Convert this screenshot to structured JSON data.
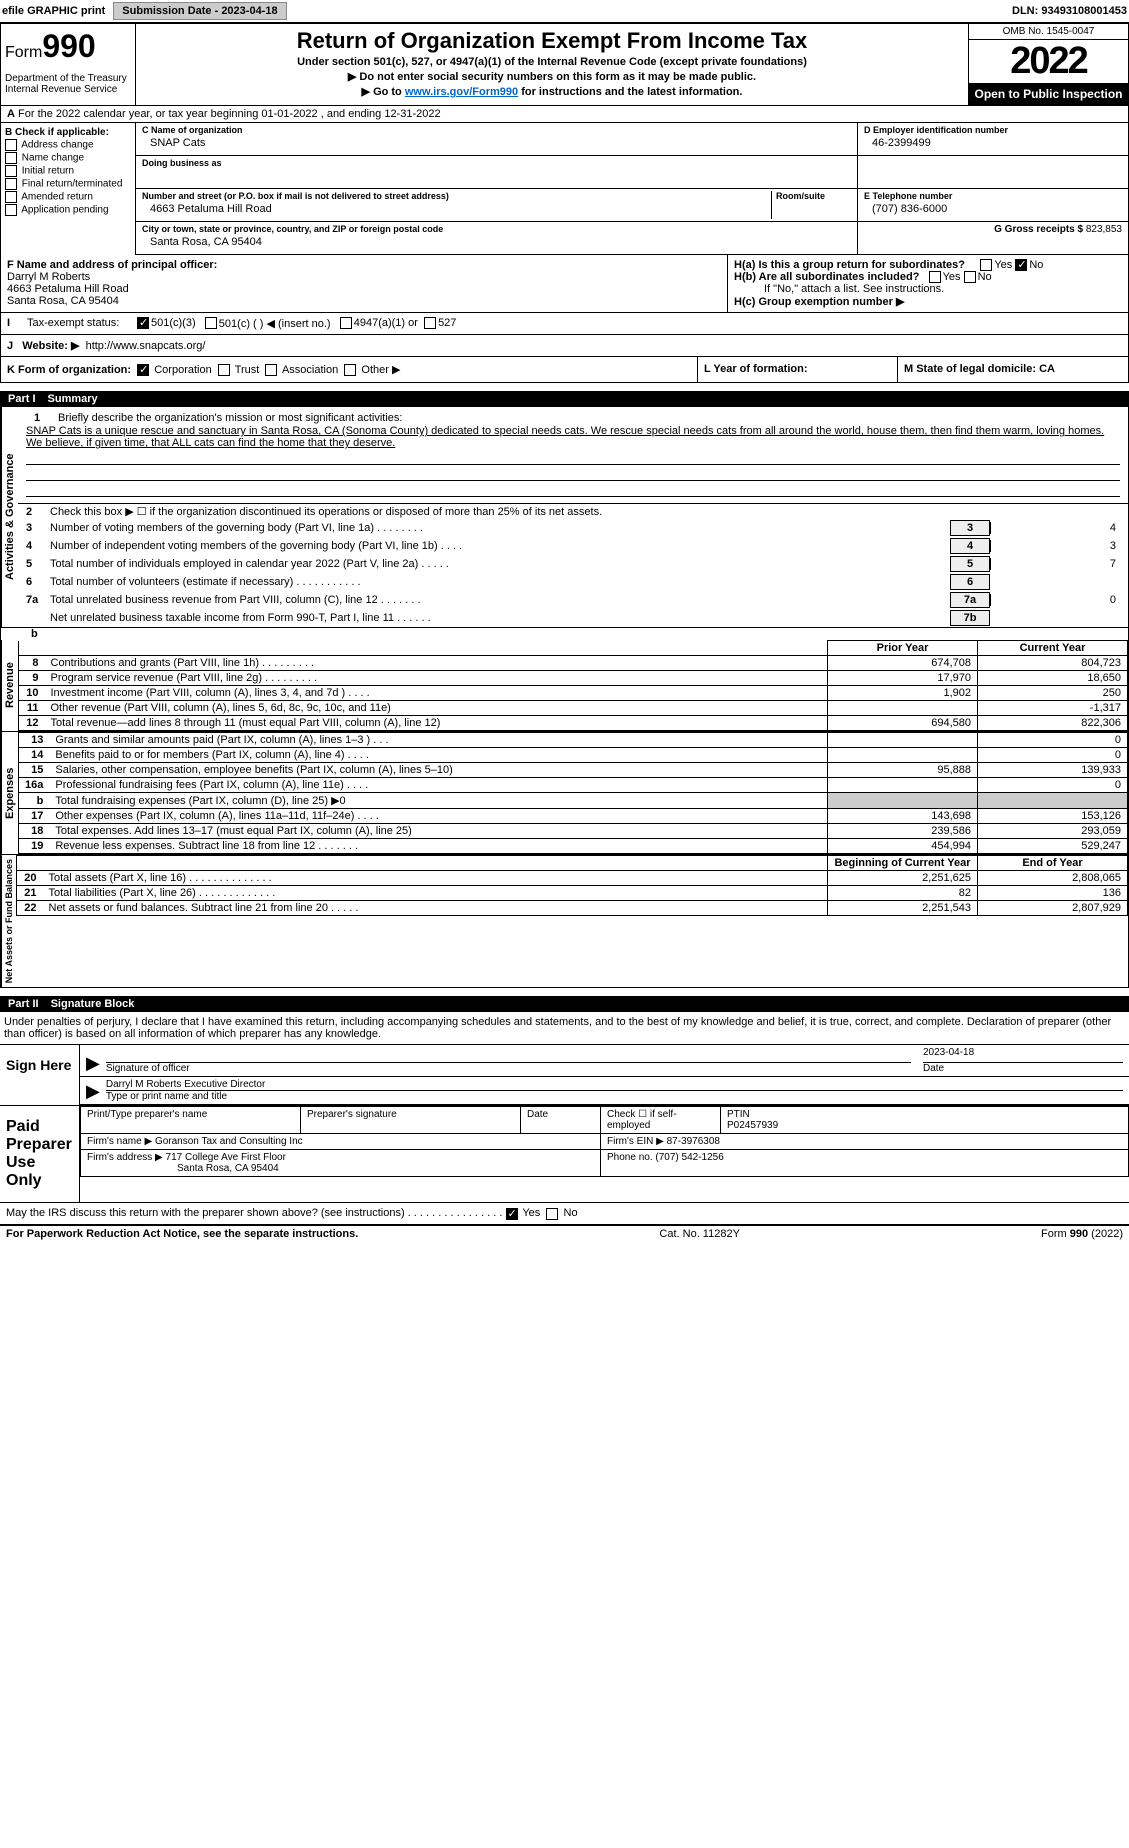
{
  "topbar": {
    "efile": "efile GRAPHIC print",
    "submission_btn": "Submission Date - 2023-04-18",
    "dln": "DLN: 93493108001453"
  },
  "header": {
    "form": "Form",
    "num": "990",
    "title": "Return of Organization Exempt From Income Tax",
    "sub": "Under section 501(c), 527, or 4947(a)(1) of the Internal Revenue Code (except private foundations)",
    "note1": "▶ Do not enter social security numbers on this form as it may be made public.",
    "note2a": "▶ Go to ",
    "note2link": "www.irs.gov/Form990",
    "note2b": " for instructions and the latest information.",
    "dept": "Department of the Treasury Internal Revenue Service",
    "omb": "OMB No. 1545-0047",
    "year": "2022",
    "open": "Open to Public Inspection"
  },
  "rowA": {
    "text": "For the 2022 calendar year, or tax year beginning 01-01-2022   , and ending 12-31-2022",
    "prefix": "A"
  },
  "colB": {
    "header": "B Check if applicable:",
    "items": [
      "Address change",
      "Name change",
      "Initial return",
      "Final return/terminated",
      "Amended return",
      "Application pending"
    ]
  },
  "colC": {
    "name_lbl": "C Name of organization",
    "name": "SNAP Cats",
    "dba_lbl": "Doing business as",
    "addr_lbl": "Number and street (or P.O. box if mail is not delivered to street address)",
    "room_lbl": "Room/suite",
    "addr": "4663 Petaluma Hill Road",
    "city_lbl": "City or town, state or province, country, and ZIP or foreign postal code",
    "city": "Santa Rosa, CA  95404"
  },
  "colD": {
    "ein_lbl": "D Employer identification number",
    "ein": "46-2399499",
    "phone_lbl": "E Telephone number",
    "phone": "(707) 836-6000",
    "gross_lbl": "G Gross receipts $",
    "gross": "823,853"
  },
  "rowF": {
    "lbl": "F Name and address of principal officer:",
    "name": "Darryl M Roberts",
    "addr1": "4663 Petaluma Hill Road",
    "addr2": "Santa Rosa, CA  95404"
  },
  "rowH": {
    "ha": "H(a) Is this a group return for subordinates?",
    "hb": "H(b) Are all subordinates included?",
    "hb_note": "If \"No,\" attach a list. See instructions.",
    "hc": "H(c) Group exemption number ▶",
    "yes": "Yes",
    "no": "No"
  },
  "rowI": {
    "lbl": "I",
    "txt": "Tax-exempt status:",
    "c3": "501(c)(3)",
    "c": "501(c) (  ) ◀ (insert no.)",
    "a947": "4947(a)(1) or",
    "s527": "527"
  },
  "rowJ": {
    "lbl": "J",
    "txt": "Website: ▶",
    "url": "http://www.snapcats.org/"
  },
  "rowK": {
    "txt": "K Form of organization:",
    "corp": "Corporation",
    "trust": "Trust",
    "assoc": "Association",
    "other": "Other ▶"
  },
  "rowL": {
    "txt": "L Year of formation:"
  },
  "rowM": {
    "txt": "M State of legal domicile: CA"
  },
  "part1": {
    "num": "Part I",
    "title": "Summary",
    "side1": "Activities & Governance",
    "side2": "Revenue",
    "side3": "Expenses",
    "side4": "Net Assets or Fund Balances",
    "q1": "Briefly describe the organization's mission or most significant activities:",
    "mission": "SNAP Cats is a unique rescue and sanctuary in Santa Rosa, CA (Sonoma County) dedicated to special needs cats. We rescue special needs cats from all around the world, house them, then find them warm, loving homes. We believe, if given time, that ALL cats can find the home that they deserve.",
    "q2": "Check this box ▶ ☐ if the organization discontinued its operations or disposed of more than 25% of its net assets.",
    "rows": [
      {
        "n": "3",
        "t": "Number of voting members of the governing body (Part VI, line 1a)  .  .  .  .  .  .  .  .",
        "box": "3",
        "v": "4"
      },
      {
        "n": "4",
        "t": "Number of independent voting members of the governing body (Part VI, line 1b)  .  .  .  .",
        "box": "4",
        "v": "3"
      },
      {
        "n": "5",
        "t": "Total number of individuals employed in calendar year 2022 (Part V, line 2a)  .  .  .  .  .",
        "box": "5",
        "v": "7"
      },
      {
        "n": "6",
        "t": "Total number of volunteers (estimate if necessary)  .  .  .  .  .  .  .  .  .  .  .",
        "box": "6",
        "v": ""
      },
      {
        "n": "7a",
        "t": "Total unrelated business revenue from Part VIII, column (C), line 12  .  .  .  .  .  .  .",
        "box": "7a",
        "v": "0"
      },
      {
        "n": "",
        "t": "Net unrelated business taxable income from Form 990-T, Part I, line 11  .  .  .  .  .  .",
        "box": "7b",
        "v": ""
      }
    ],
    "hdr_prior": "Prior Year",
    "hdr_curr": "Current Year",
    "rev": [
      {
        "n": "8",
        "t": "Contributions and grants (Part VIII, line 1h)  .  .  .  .  .  .  .  .  .",
        "p": "674,708",
        "c": "804,723"
      },
      {
        "n": "9",
        "t": "Program service revenue (Part VIII, line 2g)  .  .  .  .  .  .  .  .  .",
        "p": "17,970",
        "c": "18,650"
      },
      {
        "n": "10",
        "t": "Investment income (Part VIII, column (A), lines 3, 4, and 7d )  .  .  .  .",
        "p": "1,902",
        "c": "250"
      },
      {
        "n": "11",
        "t": "Other revenue (Part VIII, column (A), lines 5, 6d, 8c, 9c, 10c, and 11e)",
        "p": "",
        "c": "-1,317"
      },
      {
        "n": "12",
        "t": "Total revenue—add lines 8 through 11 (must equal Part VIII, column (A), line 12)",
        "p": "694,580",
        "c": "822,306"
      }
    ],
    "exp": [
      {
        "n": "13",
        "t": "Grants and similar amounts paid (Part IX, column (A), lines 1–3 )  .  .  .",
        "p": "",
        "c": "0"
      },
      {
        "n": "14",
        "t": "Benefits paid to or for members (Part IX, column (A), line 4)  .  .  .  .",
        "p": "",
        "c": "0"
      },
      {
        "n": "15",
        "t": "Salaries, other compensation, employee benefits (Part IX, column (A), lines 5–10)",
        "p": "95,888",
        "c": "139,933"
      },
      {
        "n": "16a",
        "t": "Professional fundraising fees (Part IX, column (A), line 11e)  .  .  .  .",
        "p": "",
        "c": "0"
      },
      {
        "n": "b",
        "t": "Total fundraising expenses (Part IX, column (D), line 25) ▶0",
        "p": "grey",
        "c": "grey"
      },
      {
        "n": "17",
        "t": "Other expenses (Part IX, column (A), lines 11a–11d, 11f–24e)  .  .  .  .",
        "p": "143,698",
        "c": "153,126"
      },
      {
        "n": "18",
        "t": "Total expenses. Add lines 13–17 (must equal Part IX, column (A), line 25)",
        "p": "239,586",
        "c": "293,059"
      },
      {
        "n": "19",
        "t": "Revenue less expenses. Subtract line 18 from line 12  .  .  .  .  .  .  .",
        "p": "454,994",
        "c": "529,247"
      }
    ],
    "hdr_beg": "Beginning of Current Year",
    "hdr_end": "End of Year",
    "net": [
      {
        "n": "20",
        "t": "Total assets (Part X, line 16)  .  .  .  .  .  .  .  .  .  .  .  .  .  .",
        "p": "2,251,625",
        "c": "2,808,065"
      },
      {
        "n": "21",
        "t": "Total liabilities (Part X, line 26)  .  .  .  .  .  .  .  .  .  .  .  .  .",
        "p": "82",
        "c": "136"
      },
      {
        "n": "22",
        "t": "Net assets or fund balances. Subtract line 21 from line 20  .  .  .  .  .",
        "p": "2,251,543",
        "c": "2,807,929"
      }
    ]
  },
  "part2": {
    "num": "Part II",
    "title": "Signature Block",
    "intro": "Under penalties of perjury, I declare that I have examined this return, including accompanying schedules and statements, and to the best of my knowledge and belief, it is true, correct, and complete. Declaration of preparer (other than officer) is based on all information of which preparer has any knowledge.",
    "sign_here": "Sign Here",
    "sig_officer": "Signature of officer",
    "date": "Date",
    "sig_date": "2023-04-18",
    "name_title": "Darryl M Roberts  Executive Director",
    "type_name": "Type or print name and title",
    "paid_prep": "Paid Preparer Use Only",
    "prep_name_lbl": "Print/Type preparer's name",
    "prep_sig_lbl": "Preparer's signature",
    "prep_date_lbl": "Date",
    "check_if": "Check ☐ if self-employed",
    "ptin_lbl": "PTIN",
    "ptin": "P02457939",
    "firm_name_lbl": "Firm's name    ▶",
    "firm_name": "Goranson Tax and Consulting Inc",
    "firm_ein_lbl": "Firm's EIN ▶",
    "firm_ein": "87-3976308",
    "firm_addr_lbl": "Firm's address ▶",
    "firm_addr1": "717 College Ave First Floor",
    "firm_addr2": "Santa Rosa, CA  95404",
    "firm_phone_lbl": "Phone no.",
    "firm_phone": "(707) 542-1256",
    "discuss": "May the IRS discuss this return with the preparer shown above? (see instructions)  .  .  .  .  .  .  .  .  .  .  .  .  .  .  .  .",
    "yes": "Yes",
    "no": "No"
  },
  "footer": {
    "pra": "For Paperwork Reduction Act Notice, see the separate instructions.",
    "cat": "Cat. No. 11282Y",
    "form": "Form 990 (2022)"
  }
}
